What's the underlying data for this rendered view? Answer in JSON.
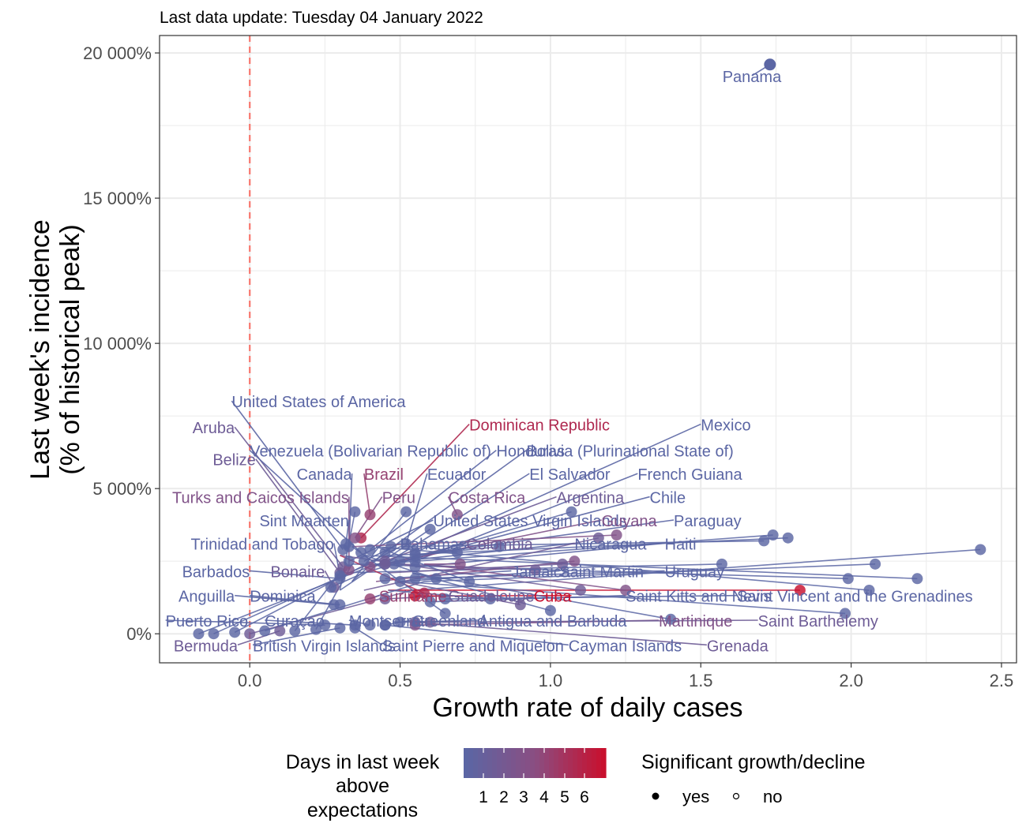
{
  "subtitle": "Last data update: Tuesday 04 January 2022",
  "colors": {
    "low": "#5b66a4",
    "mid": "#8a4e82",
    "high": "#c8102e",
    "grid": "#ebebeb",
    "refline": "#f8766d"
  },
  "chart_data": {
    "type": "scatter",
    "xlabel": "Growth rate of daily cases",
    "ylabel_line1": "Last week's incidence",
    "ylabel_line2": "(% of historical peak)",
    "xlim": [
      -0.3,
      2.55
    ],
    "ylim": [
      -1000,
      20600
    ],
    "x_ticks": [
      0.0,
      0.5,
      1.0,
      1.5,
      2.0,
      2.5
    ],
    "x_tick_labels": [
      "0.0",
      "0.5",
      "1.0",
      "1.5",
      "2.0",
      "2.5"
    ],
    "y_ticks": [
      0,
      5000,
      10000,
      15000,
      20000
    ],
    "y_tick_labels": [
      "0%",
      "5 000%",
      "10 000%",
      "15 000%",
      "20 000%"
    ],
    "reference_line_x": 0,
    "grid": true,
    "labeled_points": [
      {
        "name": "Panama",
        "x": 1.73,
        "y": 19600,
        "days": 1,
        "lx": 1.67,
        "ly": 19000,
        "anchor": "middle"
      },
      {
        "name": "United States of America",
        "x": 0.31,
        "y": 2900,
        "days": 1,
        "lx": -0.06,
        "ly": 7800,
        "anchor": "start"
      },
      {
        "name": "Dominican Republic",
        "x": 0.37,
        "y": 3300,
        "days": 5,
        "lx": 0.73,
        "ly": 7000,
        "anchor": "start"
      },
      {
        "name": "Mexico",
        "x": 0.55,
        "y": 2800,
        "days": 1,
        "lx": 1.5,
        "ly": 7000,
        "anchor": "start"
      },
      {
        "name": "Aruba",
        "x": 0.31,
        "y": 2300,
        "days": 2,
        "lx": -0.05,
        "ly": 6900,
        "anchor": "end"
      },
      {
        "name": "Venezuela (Bolivarian Republic of)",
        "x": 0.37,
        "y": 2800,
        "days": 1,
        "lx": 0.0,
        "ly": 6100,
        "anchor": "start"
      },
      {
        "name": "Honduras",
        "x": 0.4,
        "y": 2900,
        "days": 1,
        "lx": 0.82,
        "ly": 6100,
        "anchor": "start"
      },
      {
        "name": "Bolivia (Plurinational State of)",
        "x": 0.45,
        "y": 2800,
        "days": 1,
        "lx": 0.92,
        "ly": 6100,
        "anchor": "start"
      },
      {
        "name": "Belize",
        "x": 0.3,
        "y": 2100,
        "days": 2,
        "lx": 0.02,
        "ly": 5800,
        "anchor": "end"
      },
      {
        "name": "Canada",
        "x": 0.33,
        "y": 3000,
        "days": 1,
        "lx": 0.34,
        "ly": 5300,
        "anchor": "end"
      },
      {
        "name": "Brazil",
        "x": 0.4,
        "y": 4100,
        "days": 4,
        "lx": 0.38,
        "ly": 5300,
        "anchor": "start"
      },
      {
        "name": "Ecuador",
        "x": 0.52,
        "y": 3100,
        "days": 1,
        "lx": 0.59,
        "ly": 5300,
        "anchor": "start"
      },
      {
        "name": "El Salvador",
        "x": 0.45,
        "y": 2400,
        "days": 1,
        "lx": 0.93,
        "ly": 5300,
        "anchor": "start"
      },
      {
        "name": "French Guiana",
        "x": 0.55,
        "y": 2500,
        "days": 1,
        "lx": 1.29,
        "ly": 5300,
        "anchor": "start"
      },
      {
        "name": "Turks and Caicos Islands",
        "x": 0.33,
        "y": 2200,
        "days": 3,
        "lx": 0.33,
        "ly": 4500,
        "anchor": "end"
      },
      {
        "name": "Peru",
        "x": 0.35,
        "y": 3300,
        "days": 3,
        "lx": 0.44,
        "ly": 4500,
        "anchor": "start"
      },
      {
        "name": "Costa Rica",
        "x": 0.69,
        "y": 4100,
        "days": 3,
        "lx": 0.66,
        "ly": 4500,
        "anchor": "start"
      },
      {
        "name": "Argentina",
        "x": 0.45,
        "y": 2500,
        "days": 2,
        "lx": 1.02,
        "ly": 4500,
        "anchor": "start"
      },
      {
        "name": "Chile",
        "x": 0.48,
        "y": 2400,
        "days": 1,
        "lx": 1.33,
        "ly": 4500,
        "anchor": "start"
      },
      {
        "name": "Sint Maarten",
        "x": 0.32,
        "y": 3100,
        "days": 1,
        "lx": 0.33,
        "ly": 3700,
        "anchor": "end"
      },
      {
        "name": "United States Virgin Islands",
        "x": 0.33,
        "y": 2500,
        "days": 1,
        "lx": 0.61,
        "ly": 3700,
        "anchor": "start"
      },
      {
        "name": "Guyana",
        "x": 0.4,
        "y": 2300,
        "days": 3,
        "lx": 1.17,
        "ly": 3700,
        "anchor": "start"
      },
      {
        "name": "Paraguay",
        "x": 0.55,
        "y": 2700,
        "days": 1,
        "lx": 1.41,
        "ly": 3700,
        "anchor": "start"
      },
      {
        "name": "Trinidad and Tobago",
        "x": 0.3,
        "y": 2000,
        "days": 1,
        "lx": 0.28,
        "ly": 2900,
        "anchor": "end"
      },
      {
        "name": "Bahamas",
        "x": 0.38,
        "y": 2500,
        "days": 1,
        "lx": 0.5,
        "ly": 2900,
        "anchor": "start"
      },
      {
        "name": "Colombia",
        "x": 0.45,
        "y": 2400,
        "days": 2,
        "lx": 0.72,
        "ly": 2900,
        "anchor": "start"
      },
      {
        "name": "Nicaragua",
        "x": 0.5,
        "y": 2500,
        "days": 1,
        "lx": 1.08,
        "ly": 2900,
        "anchor": "start"
      },
      {
        "name": "Haiti",
        "x": 0.55,
        "y": 2300,
        "days": 1,
        "lx": 1.38,
        "ly": 2900,
        "anchor": "start"
      },
      {
        "name": "Barbados",
        "x": 0.3,
        "y": 1900,
        "days": 1,
        "lx": 0.0,
        "ly": 1950,
        "anchor": "end"
      },
      {
        "name": "Bonaire",
        "x": 0.28,
        "y": 1600,
        "days": 2,
        "lx": 0.25,
        "ly": 1950,
        "anchor": "end"
      },
      {
        "name": "Jamaica",
        "x": 0.45,
        "y": 1900,
        "days": 1,
        "lx": 0.87,
        "ly": 1950,
        "anchor": "start"
      },
      {
        "name": "Saint Martin",
        "x": 0.5,
        "y": 1800,
        "days": 1,
        "lx": 1.03,
        "ly": 1950,
        "anchor": "start"
      },
      {
        "name": "Uruguay",
        "x": 0.55,
        "y": 1900,
        "days": 1,
        "lx": 1.38,
        "ly": 1950,
        "anchor": "start"
      },
      {
        "name": "Anguilla",
        "x": 0.28,
        "y": 1000,
        "days": 1,
        "lx": -0.05,
        "ly": 1100,
        "anchor": "end"
      },
      {
        "name": "Dominica",
        "x": 0.3,
        "y": 1000,
        "days": 1,
        "lx": 0.0,
        "ly": 1100,
        "anchor": "start"
      },
      {
        "name": "Suriname",
        "x": 0.4,
        "y": 1200,
        "days": 4,
        "lx": 0.43,
        "ly": 1100,
        "anchor": "start"
      },
      {
        "name": "Guadeloupe",
        "x": 0.45,
        "y": 1200,
        "days": 2,
        "lx": 0.66,
        "ly": 1100,
        "anchor": "start"
      },
      {
        "name": "Cuba",
        "x": 0.55,
        "y": 1300,
        "days": 6,
        "lx": 1.07,
        "ly": 1100,
        "anchor": "end"
      },
      {
        "name": "Saint Kitts and Nevis",
        "x": 0.6,
        "y": 1100,
        "days": 1,
        "lx": 1.25,
        "ly": 1100,
        "anchor": "start"
      },
      {
        "name": "Saint Vincent and the Grenadines",
        "x": 0.65,
        "y": 1200,
        "days": 1,
        "lx": 1.62,
        "ly": 1100,
        "anchor": "start"
      },
      {
        "name": "Puerto Rico",
        "x": 0.25,
        "y": 300,
        "days": 1,
        "lx": -0.28,
        "ly": 250,
        "anchor": "start"
      },
      {
        "name": "Curaçao",
        "x": 0.35,
        "y": 300,
        "days": 1,
        "lx": 0.05,
        "ly": 250,
        "anchor": "start"
      },
      {
        "name": "Montserrat",
        "x": 0.4,
        "y": 300,
        "days": 1,
        "lx": 0.33,
        "ly": 250,
        "anchor": "start"
      },
      {
        "name": "Greenland",
        "x": 0.45,
        "y": 300,
        "days": 1,
        "lx": 0.54,
        "ly": 250,
        "anchor": "start"
      },
      {
        "name": "Antigua and Barbuda",
        "x": 0.5,
        "y": 400,
        "days": 1,
        "lx": 0.76,
        "ly": 250,
        "anchor": "start"
      },
      {
        "name": "Martinique",
        "x": 0.55,
        "y": 300,
        "days": 3,
        "lx": 1.36,
        "ly": 250,
        "anchor": "start"
      },
      {
        "name": "Saint Barthélemy",
        "x": 0.6,
        "y": 400,
        "days": 2,
        "lx": 1.69,
        "ly": 250,
        "anchor": "start"
      },
      {
        "name": "Bermuda",
        "x": 0.1,
        "y": 100,
        "days": 2,
        "lx": -0.04,
        "ly": -600,
        "anchor": "end"
      },
      {
        "name": "British Virgin Islands",
        "x": 0.3,
        "y": 200,
        "days": 1,
        "lx": 0.01,
        "ly": -600,
        "anchor": "start"
      },
      {
        "name": "Saint Pierre and Miquelon",
        "x": 0.35,
        "y": 200,
        "days": 1,
        "lx": 0.44,
        "ly": -600,
        "anchor": "start"
      },
      {
        "name": "Cayman Islands",
        "x": 0.45,
        "y": 300,
        "days": 1,
        "lx": 1.06,
        "ly": -600,
        "anchor": "start"
      },
      {
        "name": "Grenada",
        "x": 0.55,
        "y": 400,
        "days": 2,
        "lx": 1.52,
        "ly": -600,
        "anchor": "start"
      }
    ],
    "extra_points": [
      {
        "x": 0.35,
        "y": 4200,
        "days": 1
      },
      {
        "x": 0.52,
        "y": 4200,
        "days": 1
      },
      {
        "x": 1.07,
        "y": 4200,
        "days": 1
      },
      {
        "x": 1.74,
        "y": 3400,
        "days": 1
      },
      {
        "x": 1.79,
        "y": 3300,
        "days": 1
      },
      {
        "x": 1.71,
        "y": 3200,
        "days": 1
      },
      {
        "x": 2.43,
        "y": 2900,
        "days": 1
      },
      {
        "x": 2.08,
        "y": 2400,
        "days": 1
      },
      {
        "x": 1.57,
        "y": 2400,
        "days": 1
      },
      {
        "x": 1.99,
        "y": 1900,
        "days": 1
      },
      {
        "x": 2.22,
        "y": 1900,
        "days": 1
      },
      {
        "x": 2.06,
        "y": 1500,
        "days": 1
      },
      {
        "x": 1.83,
        "y": 1500,
        "days": 6
      },
      {
        "x": 1.98,
        "y": 700,
        "days": 1
      },
      {
        "x": 1.4,
        "y": 500,
        "days": 1
      },
      {
        "x": 1.25,
        "y": 1500,
        "days": 3
      },
      {
        "x": 1.1,
        "y": 1500,
        "days": 2
      },
      {
        "x": 1.22,
        "y": 3400,
        "days": 3
      },
      {
        "x": 1.16,
        "y": 3300,
        "days": 2
      },
      {
        "x": 1.08,
        "y": 2500,
        "days": 3
      },
      {
        "x": 1.04,
        "y": 2400,
        "days": 2
      },
      {
        "x": 0.95,
        "y": 2200,
        "days": 2
      },
      {
        "x": 0.83,
        "y": 3000,
        "days": 1
      },
      {
        "x": 0.69,
        "y": 2800,
        "days": 1
      },
      {
        "x": 0.6,
        "y": 3600,
        "days": 1
      },
      {
        "x": 0.47,
        "y": 3000,
        "days": 1
      },
      {
        "x": 0.27,
        "y": 1600,
        "days": 1
      },
      {
        "x": -0.17,
        "y": 0,
        "days": 1
      },
      {
        "x": -0.12,
        "y": 0,
        "days": 1
      },
      {
        "x": -0.05,
        "y": 50,
        "days": 1
      },
      {
        "x": 0.0,
        "y": 0,
        "days": 2
      },
      {
        "x": 0.05,
        "y": 100,
        "days": 1
      },
      {
        "x": 0.15,
        "y": 100,
        "days": 1
      },
      {
        "x": 0.22,
        "y": 150,
        "days": 1
      },
      {
        "x": 0.62,
        "y": 1900,
        "days": 1
      },
      {
        "x": 0.73,
        "y": 1800,
        "days": 1
      },
      {
        "x": 0.8,
        "y": 1200,
        "days": 1
      },
      {
        "x": 0.9,
        "y": 1000,
        "days": 2
      },
      {
        "x": 1.0,
        "y": 800,
        "days": 1
      },
      {
        "x": 0.7,
        "y": 2400,
        "days": 3
      },
      {
        "x": 0.58,
        "y": 1400,
        "days": 5
      },
      {
        "x": 0.65,
        "y": 700,
        "days": 1
      }
    ]
  },
  "legend": {
    "color_title_lines": [
      "Days in last week",
      "above",
      "expectations"
    ],
    "color_ticks": [
      "1",
      "2",
      "3",
      "4",
      "5",
      "6"
    ],
    "shape_title": "Significant growth/decline",
    "shape_items": [
      {
        "label": "yes",
        "filled": true
      },
      {
        "label": "no",
        "filled": false
      }
    ]
  }
}
